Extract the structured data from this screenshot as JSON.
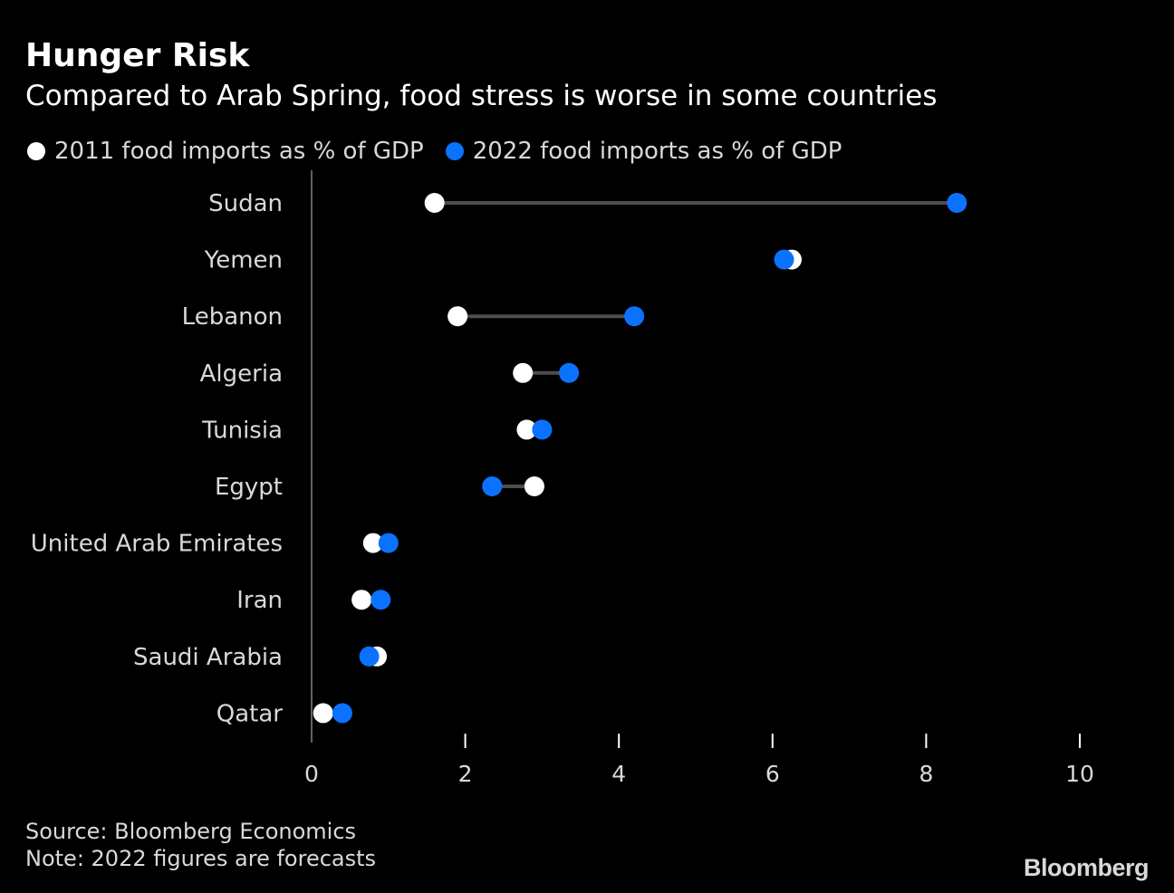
{
  "header": {
    "title": "Hunger Risk",
    "subtitle": "Compared to Arab Spring, food stress is worse in some countries"
  },
  "legend": {
    "items": [
      {
        "label": "2011 food imports as % of GDP",
        "color": "#ffffff"
      },
      {
        "label": "2022 food imports as % of GDP",
        "color": "#0a72ff"
      }
    ]
  },
  "footer": {
    "source": "Source: Bloomberg Economics",
    "note": "Note: 2022 figures are forecasts",
    "brand": "Bloomberg"
  },
  "colors": {
    "background": "#000000",
    "series_2011": "#ffffff",
    "series_2022": "#0a72ff",
    "connector": "#4d4d4d",
    "axis": "#808080",
    "text": "#d9d9d9"
  },
  "chart_data": {
    "type": "scatter",
    "subtype": "dumbbell",
    "title": "Hunger Risk",
    "subtitle": "Compared to Arab Spring, food stress is worse in some countries",
    "xlabel": "",
    "ylabel": "",
    "xlim": [
      0,
      10
    ],
    "xticks": [
      0,
      2,
      4,
      6,
      8,
      10
    ],
    "xtick_labels": [
      "0",
      "2",
      "4",
      "6",
      "8",
      "10"
    ],
    "grid": false,
    "legend_position": "top-left",
    "categories": [
      "Sudan",
      "Yemen",
      "Lebanon",
      "Algeria",
      "Tunisia",
      "Egypt",
      "United Arab Emirates",
      "Iran",
      "Saudi Arabia",
      "Qatar"
    ],
    "series": [
      {
        "name": "2011 food imports as % of GDP",
        "values": [
          1.6,
          6.25,
          1.9,
          2.75,
          2.8,
          2.9,
          0.8,
          0.65,
          0.85,
          0.15
        ]
      },
      {
        "name": "2022 food imports as % of GDP",
        "values": [
          8.4,
          6.15,
          4.2,
          3.35,
          3.0,
          2.35,
          1.0,
          0.9,
          0.75,
          0.4
        ]
      }
    ]
  }
}
